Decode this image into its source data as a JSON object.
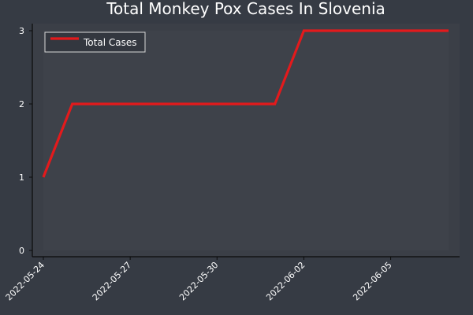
{
  "colors": {
    "background": "#363b44",
    "plot_background": "#3b3f47",
    "axis": "#0b0b0b",
    "series_line": "#e31a1c",
    "text": "#ffffff"
  },
  "chart_data": {
    "type": "line",
    "title": "Total Monkey Pox Cases In Slovenia",
    "xlabel": "",
    "ylabel": "",
    "x": [
      "2022-05-24",
      "2022-05-25",
      "2022-06-01",
      "2022-06-02",
      "2022-06-07"
    ],
    "series": [
      {
        "name": "Total Cases",
        "values": [
          1,
          2,
          2,
          3,
          3
        ]
      }
    ],
    "x_ticks": [
      "2022-05-24",
      "2022-05-27",
      "2022-05-30",
      "2022-06-02",
      "2022-06-05"
    ],
    "y_ticks": [
      0,
      1,
      2,
      3
    ],
    "xlim": [
      "2022-05-24",
      "2022-06-07"
    ],
    "ylim": [
      0,
      3
    ],
    "grid": false,
    "legend_position": "top-left"
  }
}
